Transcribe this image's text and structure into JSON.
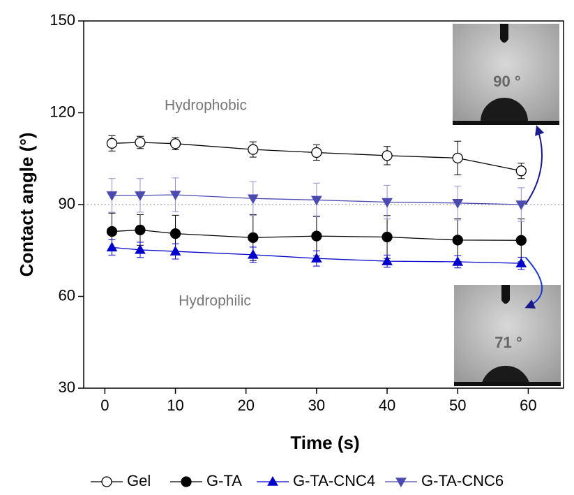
{
  "chart_data": {
    "type": "line",
    "xlabel": "Time (s)",
    "ylabel": "Contact angle (°)",
    "x": [
      1,
      5,
      10,
      21,
      30,
      40,
      50,
      59
    ],
    "xlim": [
      -3,
      65
    ],
    "xticks": [
      0,
      10,
      20,
      30,
      40,
      50,
      60
    ],
    "ylim": [
      30,
      150
    ],
    "yticks": [
      30,
      60,
      90,
      120,
      150
    ],
    "reference_line": 90,
    "annotations": [
      "Hydrophobic",
      "Hydrophilic"
    ],
    "inset_labels": [
      "90 °",
      "71 °"
    ],
    "legend": "bottom",
    "series": [
      {
        "name": "Gel",
        "color": "#000000",
        "marker": "open-circle",
        "values": [
          110,
          110.3,
          109.9,
          108,
          107,
          106,
          105.2,
          101
        ],
        "errors": [
          2.5,
          2,
          2,
          2.5,
          2.5,
          3,
          5.5,
          2.5
        ]
      },
      {
        "name": "G-TA",
        "color": "#000000",
        "marker": "circle",
        "values": [
          81.2,
          81.7,
          80.5,
          79.2,
          79.7,
          79.4,
          78.4,
          78.3
        ],
        "errors": [
          6,
          5,
          6,
          7.5,
          6.5,
          7,
          7,
          7
        ]
      },
      {
        "name": "G-TA-CNC4",
        "color": "#0000cc",
        "marker": "triangle-up",
        "values": [
          76,
          75.2,
          74.7,
          73.6,
          72.4,
          71.5,
          71.3,
          70.8
        ],
        "errors": [
          2.5,
          2.5,
          2.5,
          2.5,
          2.5,
          2,
          2,
          2
        ]
      },
      {
        "name": "G-TA-CNC6",
        "color": "#4a4ab0",
        "marker": "triangle-down",
        "values": [
          93,
          93,
          93.2,
          92,
          91.5,
          90.8,
          90.5,
          90
        ],
        "errors": [
          5.5,
          5.5,
          5.5,
          5.5,
          5.5,
          5.5,
          5.5,
          5.5
        ]
      }
    ]
  }
}
